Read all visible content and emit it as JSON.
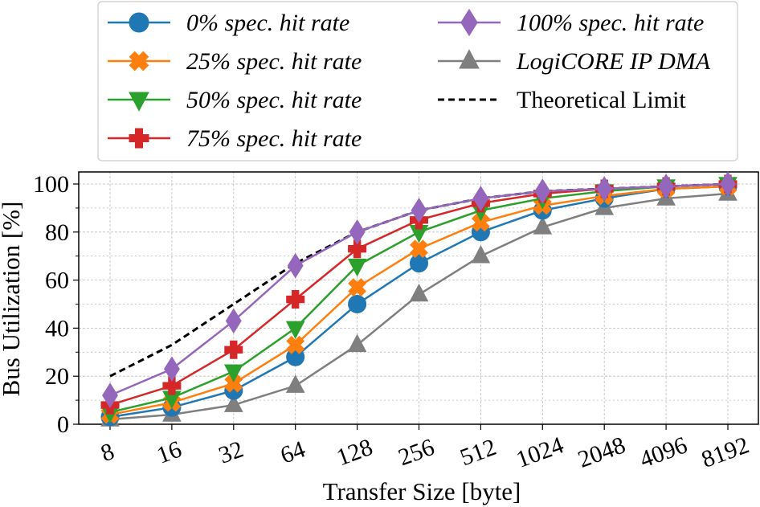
{
  "chart_data": {
    "type": "line",
    "xlabel": "Transfer Size [byte]",
    "ylabel": "Bus Utilization [%]",
    "ylim": [
      0,
      100
    ],
    "yticks": [
      0,
      20,
      40,
      60,
      80,
      100
    ],
    "categories": [
      "8",
      "16",
      "32",
      "64",
      "128",
      "256",
      "512",
      "1024",
      "2048",
      "4096",
      "8192"
    ],
    "x_scale": "log2 (categorical ticks)",
    "grid": true,
    "legend_position": "above plot, two columns",
    "series": [
      {
        "name": "0% spec. hit rate",
        "color": "#1f77b4",
        "marker": "circle",
        "italic": true,
        "values": [
          3,
          7,
          14,
          28,
          50,
          67,
          80,
          89,
          94,
          98,
          99
        ]
      },
      {
        "name": "25% spec. hit rate",
        "color": "#ff7f0e",
        "marker": "x-filled",
        "italic": true,
        "values": [
          4,
          9,
          17,
          33,
          57,
          73,
          84,
          91,
          95,
          98,
          99
        ]
      },
      {
        "name": "50% spec. hit rate",
        "color": "#2ca02c",
        "marker": "triangle-down",
        "italic": true,
        "values": [
          5,
          11,
          22,
          40,
          66,
          80,
          89,
          94,
          97,
          99,
          100
        ]
      },
      {
        "name": "75% spec. hit rate",
        "color": "#d62728",
        "marker": "plus-filled",
        "italic": true,
        "values": [
          8,
          16,
          31,
          52,
          73,
          85,
          92,
          96,
          98,
          99,
          100
        ]
      },
      {
        "name": "100% spec. hit rate",
        "color": "#9467bd",
        "marker": "diamond",
        "italic": true,
        "values": [
          12,
          23,
          43,
          66,
          80,
          89,
          94,
          97,
          98,
          99,
          100
        ]
      },
      {
        "name": "LogiCORE IP DMA",
        "color": "#7f7f7f",
        "marker": "triangle-up",
        "italic": true,
        "values": [
          2,
          4,
          8,
          16,
          33,
          54,
          70,
          82,
          90,
          94,
          96
        ]
      },
      {
        "name": "Theoretical Limit",
        "color": "#000000",
        "marker": "none",
        "dashed": true,
        "italic": false,
        "values": [
          20,
          33,
          50,
          67,
          80,
          89,
          94,
          97,
          98,
          99,
          100
        ]
      }
    ]
  }
}
